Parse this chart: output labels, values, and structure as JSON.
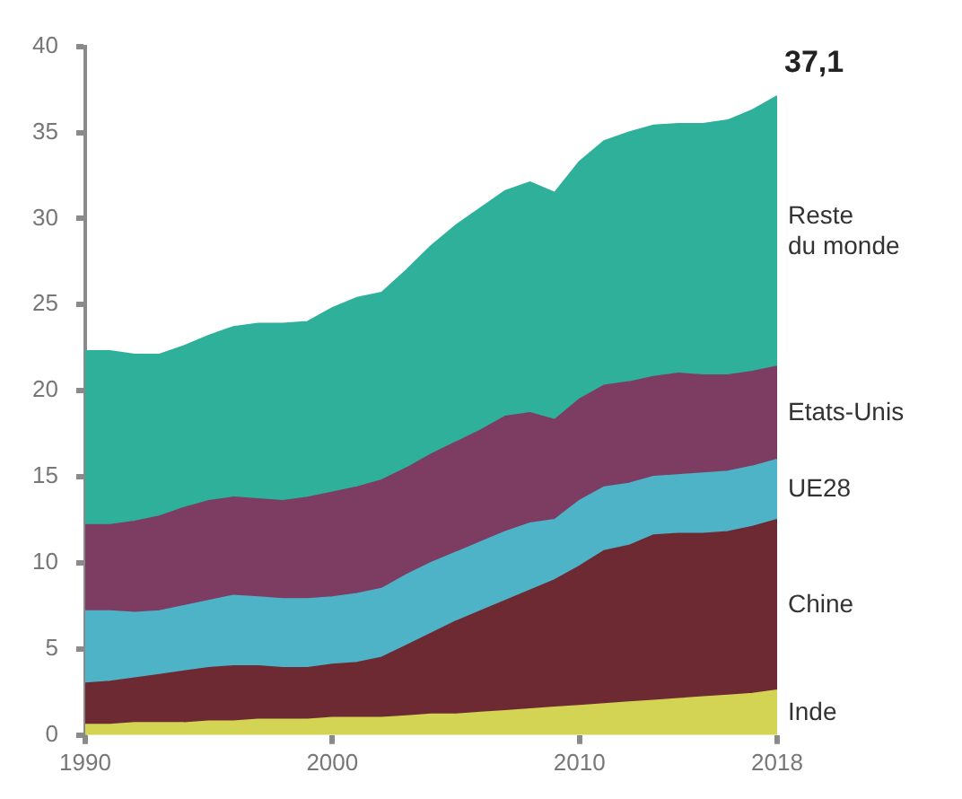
{
  "chart_data": {
    "type": "area",
    "stacked": true,
    "x": [
      1990,
      1991,
      1992,
      1993,
      1994,
      1995,
      1996,
      1997,
      1998,
      1999,
      2000,
      2001,
      2002,
      2003,
      2004,
      2005,
      2006,
      2007,
      2008,
      2009,
      2010,
      2011,
      2012,
      2013,
      2014,
      2015,
      2016,
      2017,
      2018
    ],
    "series": [
      {
        "name": "Inde",
        "color": "#d4d454",
        "values": [
          0.6,
          0.6,
          0.7,
          0.7,
          0.7,
          0.8,
          0.8,
          0.9,
          0.9,
          0.9,
          1.0,
          1.0,
          1.0,
          1.1,
          1.2,
          1.2,
          1.3,
          1.4,
          1.5,
          1.6,
          1.7,
          1.8,
          1.9,
          2.0,
          2.1,
          2.2,
          2.3,
          2.4,
          2.6
        ]
      },
      {
        "name": "Chine",
        "color": "#6e2a33",
        "values": [
          2.4,
          2.5,
          2.6,
          2.8,
          3.0,
          3.1,
          3.2,
          3.1,
          3.0,
          3.0,
          3.1,
          3.2,
          3.5,
          4.1,
          4.7,
          5.4,
          5.9,
          6.4,
          6.9,
          7.4,
          8.1,
          8.9,
          9.1,
          9.6,
          9.6,
          9.5,
          9.5,
          9.7,
          9.9
        ]
      },
      {
        "name": "UE28",
        "color": "#4fb3c8",
        "values": [
          4.2,
          4.1,
          3.8,
          3.7,
          3.8,
          3.9,
          4.1,
          4.0,
          4.0,
          4.0,
          3.9,
          4.0,
          4.0,
          4.1,
          4.1,
          4.0,
          4.0,
          4.0,
          3.9,
          3.5,
          3.8,
          3.7,
          3.6,
          3.4,
          3.4,
          3.5,
          3.5,
          3.5,
          3.5
        ]
      },
      {
        "name": "Etats-Unis",
        "color": "#7d3d63",
        "values": [
          5.0,
          5.0,
          5.3,
          5.5,
          5.7,
          5.8,
          5.7,
          5.7,
          5.7,
          5.9,
          6.1,
          6.2,
          6.3,
          6.2,
          6.3,
          6.4,
          6.5,
          6.7,
          6.4,
          5.8,
          5.9,
          5.9,
          5.9,
          5.8,
          5.9,
          5.7,
          5.6,
          5.5,
          5.4
        ]
      },
      {
        "name": "Reste\ndu monde",
        "color": "#2eb09a",
        "values": [
          10.1,
          10.1,
          9.7,
          9.4,
          9.4,
          9.6,
          9.9,
          10.2,
          10.3,
          10.2,
          10.7,
          11.0,
          10.9,
          11.5,
          12.1,
          12.6,
          12.9,
          13.1,
          13.4,
          13.2,
          13.8,
          14.2,
          14.5,
          14.6,
          14.5,
          14.6,
          14.8,
          15.2,
          15.7
        ]
      }
    ],
    "xlim": [
      1990,
      2018
    ],
    "xticks": [
      1990,
      2000,
      2010,
      2018
    ],
    "ylim": [
      0,
      40
    ],
    "yticks": [
      0,
      5,
      10,
      15,
      20,
      25,
      30,
      35,
      40
    ],
    "grid": false,
    "legend": false,
    "annotations": [
      {
        "text": "37,1",
        "x": 2018,
        "y": 37.1
      }
    ]
  }
}
